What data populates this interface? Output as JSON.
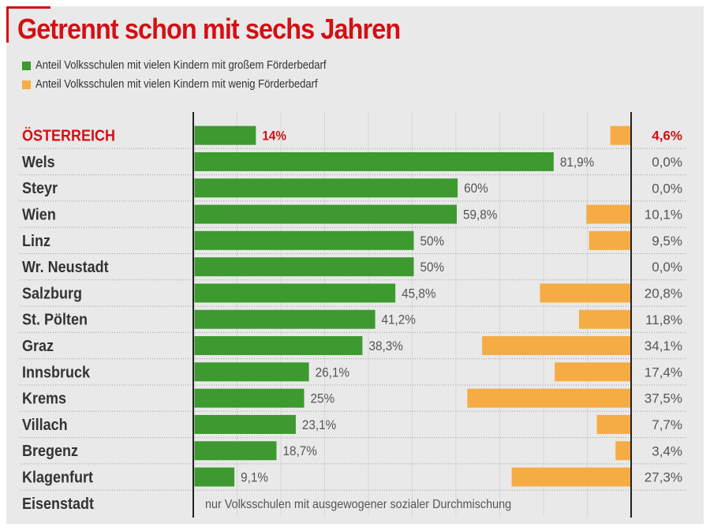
{
  "title": "Getrennt schon mit sechs Jahren",
  "legend": [
    {
      "label": "Anteil Volksschulen mit vielen Kindern mit großem Förderbedarf",
      "color": "#3c9a2e"
    },
    {
      "label": "Anteil Volksschulen mit vielen Kindern mit wenig Förderbedarf",
      "color": "#f5ac45"
    }
  ],
  "chart_data": {
    "type": "bar",
    "title": "Getrennt schon mit sechs Jahren",
    "categories": [
      "ÖSTERREICH",
      "Wels",
      "Steyr",
      "Wien",
      "Linz",
      "Wr. Neustadt",
      "Salzburg",
      "St. Pölten",
      "Graz",
      "Innsbruck",
      "Krems",
      "Villach",
      "Bregenz",
      "Klagenfurt",
      "Eisenstadt"
    ],
    "highlight_category": "ÖSTERREICH",
    "series": [
      {
        "name": "Anteil Volksschulen mit vielen Kindern mit großem Förderbedarf",
        "values": [
          14,
          81.9,
          60,
          59.8,
          50,
          50,
          45.8,
          41.2,
          38.3,
          26.1,
          25,
          23.1,
          18.7,
          9.1,
          null
        ],
        "labels": [
          "14%",
          "81,9%",
          "60%",
          "59,8%",
          "50%",
          "50%",
          "45,8%",
          "41,2%",
          "38,3%",
          "26,1%",
          "25%",
          "23,1%",
          "18,7%",
          "9,1%",
          ""
        ]
      },
      {
        "name": "Anteil Volksschulen mit vielen Kindern mit wenig Förderbedarf",
        "values": [
          4.6,
          0,
          0,
          10.1,
          9.5,
          0,
          20.8,
          11.8,
          34.1,
          17.4,
          37.5,
          7.7,
          3.4,
          27.3,
          null
        ],
        "labels": [
          "4,6%",
          "0,0%",
          "0,0%",
          "10,1%",
          "9,5%",
          "0,0%",
          "20,8%",
          "11,8%",
          "34,1%",
          "17,4%",
          "37,5%",
          "7,7%",
          "3,4%",
          "27,3%",
          ""
        ]
      }
    ],
    "xlim": [
      0,
      100
    ],
    "note": "nur Volksschulen mit ausgewogener sozialer Durchmischung",
    "note_category": "Eisenstadt",
    "colors": {
      "green": "#3c9a2e",
      "orange": "#f5ac45",
      "highlight": "#d40f14",
      "text": "#333333",
      "value_text": "#555555"
    }
  }
}
